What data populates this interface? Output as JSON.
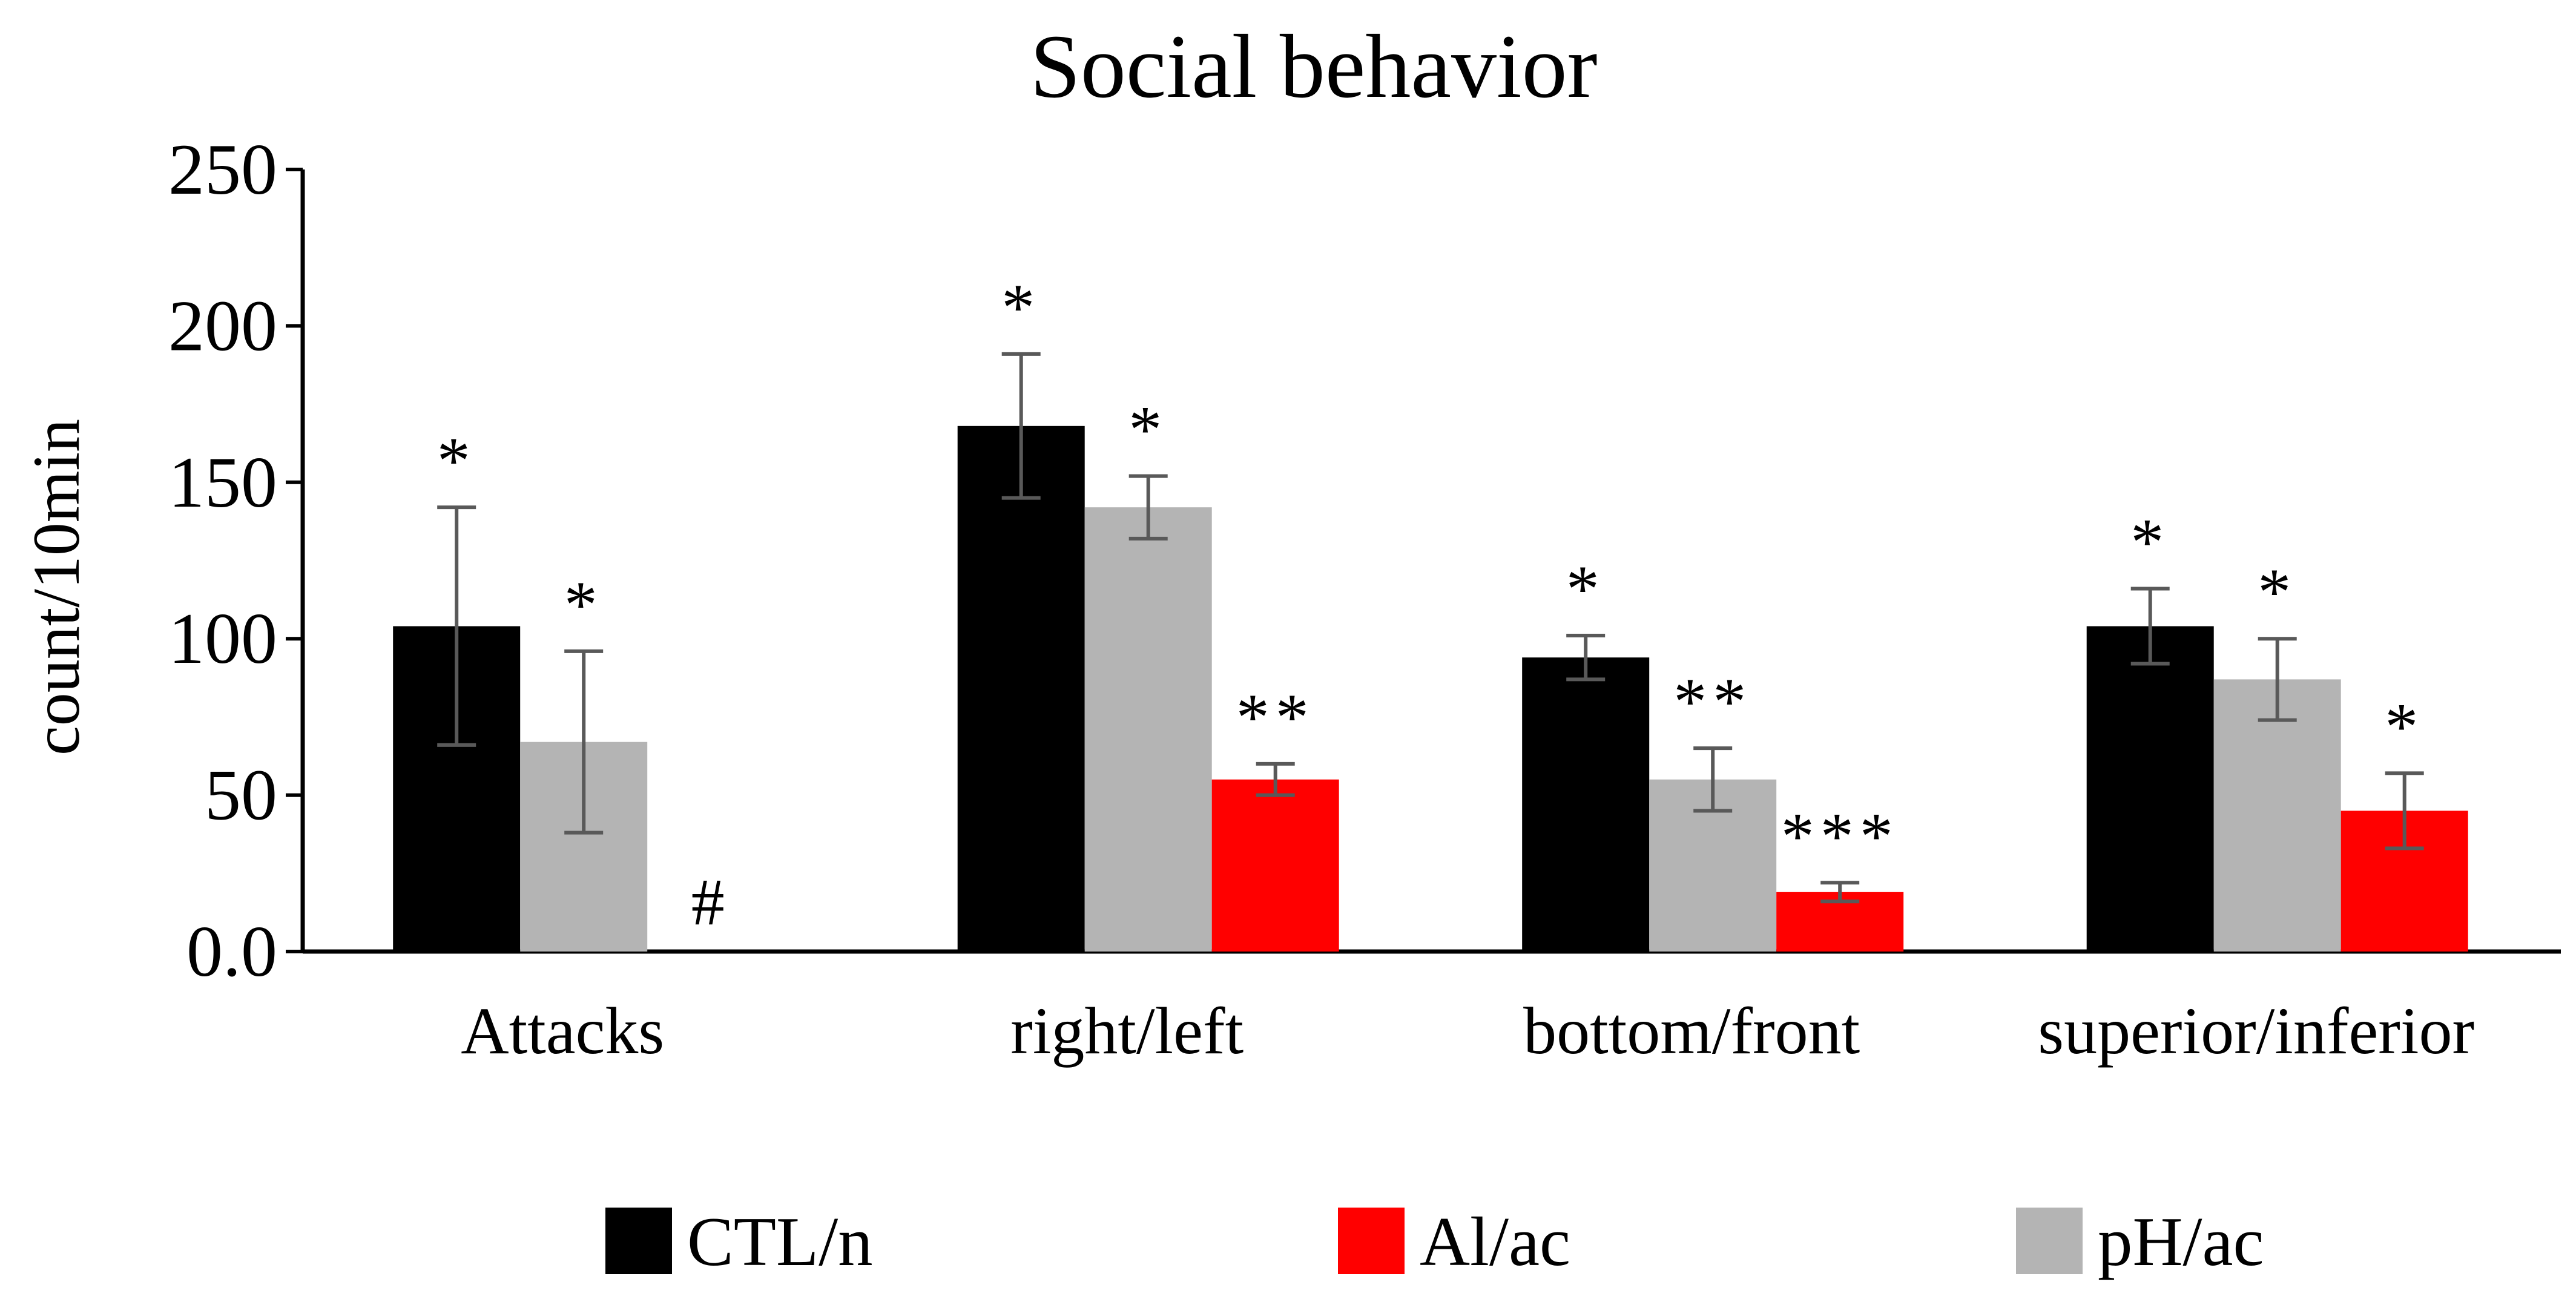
{
  "chart_data": {
    "type": "bar",
    "title": "Social behavior",
    "xlabel": "",
    "ylabel": "count/10min",
    "ylim": [
      0,
      250
    ],
    "yticks": [
      0,
      50,
      100,
      150,
      200,
      250
    ],
    "ytick_labels": [
      "0.0",
      "50",
      "100",
      "150",
      "200",
      "250"
    ],
    "grid": false,
    "legend_position": "bottom",
    "categories": [
      "Attacks",
      "right/left",
      "bottom/front",
      "superior/inferior"
    ],
    "bar_order": [
      "CTL/n",
      "pH/ac",
      "Al/ac"
    ],
    "legend_order": [
      "CTL/n",
      "Al/ac",
      "pH/ac"
    ],
    "series": [
      {
        "name": "CTL/n",
        "color": "#000000",
        "values": [
          104,
          168,
          94,
          104
        ],
        "errors": [
          38,
          23,
          7,
          12
        ],
        "significance": [
          "*",
          "*",
          "*",
          "*"
        ]
      },
      {
        "name": "pH/ac",
        "color": "#b4b4b4",
        "values": [
          67,
          142,
          55,
          87
        ],
        "errors": [
          29,
          10,
          10,
          13
        ],
        "significance": [
          "*",
          "*",
          "**",
          "*"
        ]
      },
      {
        "name": "Al/ac",
        "color": "#ff0000",
        "values": [
          0,
          55,
          19,
          45
        ],
        "errors": [
          0,
          5,
          3,
          12
        ],
        "significance": [
          "#",
          "**",
          "***",
          "*"
        ]
      }
    ]
  }
}
